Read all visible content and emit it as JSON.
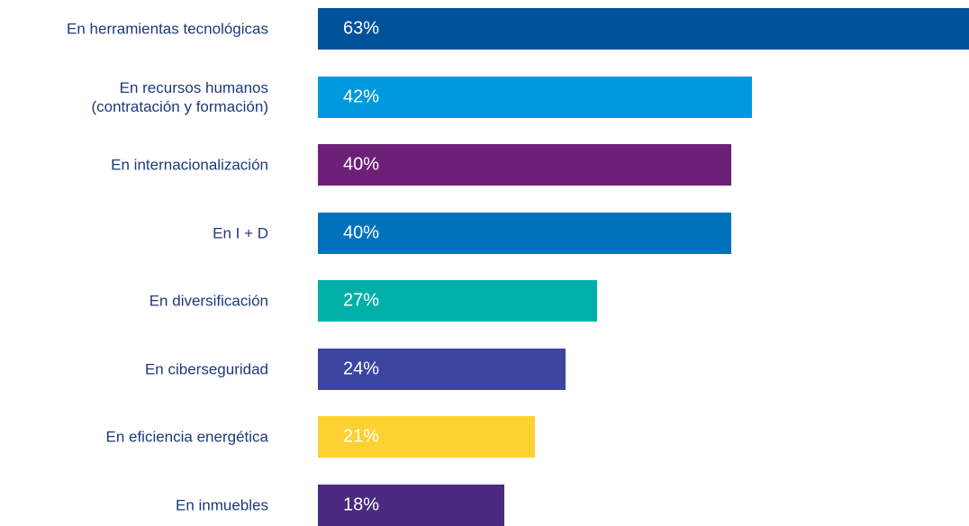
{
  "chart_data": {
    "type": "bar",
    "orientation": "horizontal",
    "categories": [
      "En herramientas tecnológicas",
      "En recursos humanos\n(contratación y formación)",
      "En internacionalización",
      "En I + D",
      "En diversificación",
      "En ciberseguridad",
      "En eficiencia energética",
      "En inmuebles"
    ],
    "values": [
      63,
      42,
      40,
      40,
      27,
      24,
      21,
      18
    ],
    "value_labels": [
      "63%",
      "42%",
      "40%",
      "40%",
      "27%",
      "24%",
      "21%",
      "18%"
    ],
    "colors": [
      "#00529b",
      "#0099dd",
      "#6d2077",
      "#0072bc",
      "#00b0a8",
      "#3b45a0",
      "#fdd131",
      "#4a2a80"
    ]
  }
}
